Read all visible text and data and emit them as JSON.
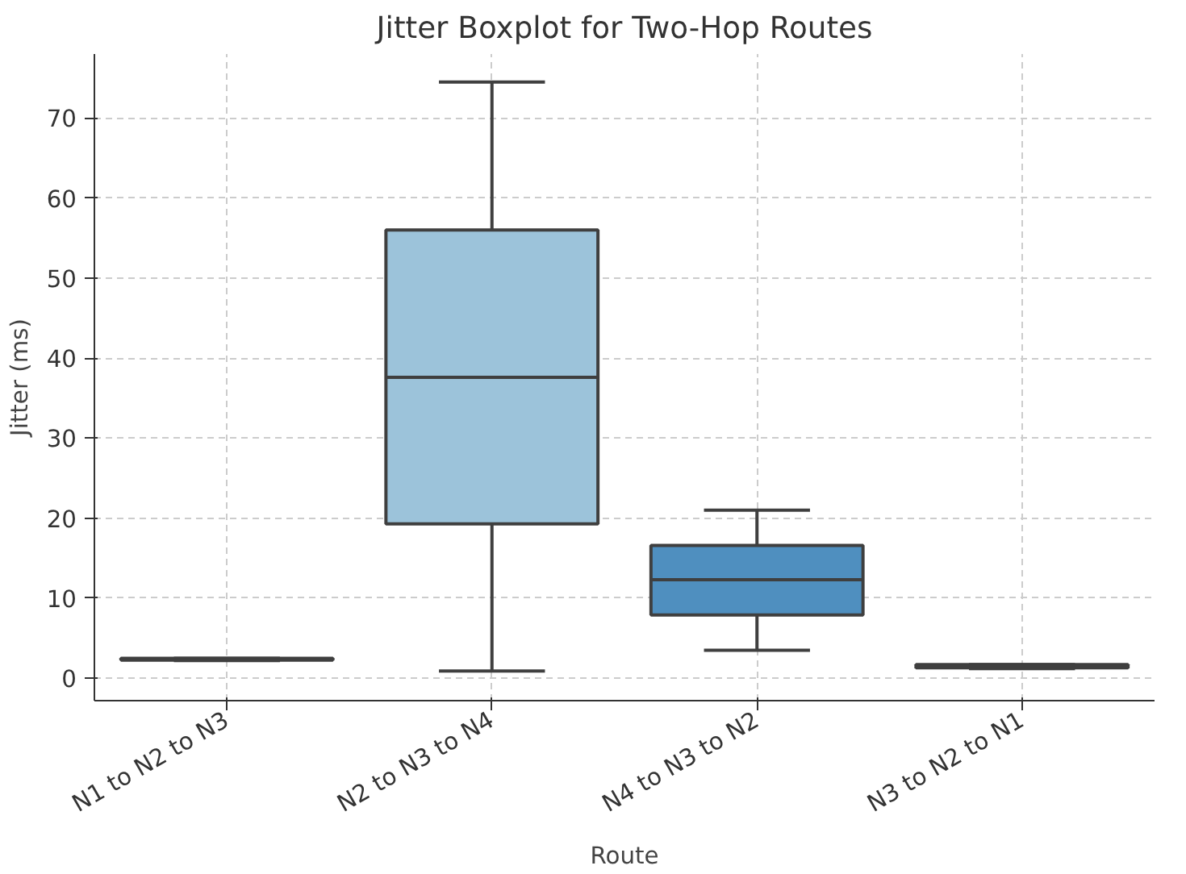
{
  "chart_data": {
    "type": "box",
    "title": "Jitter Boxplot for Two-Hop Routes",
    "xlabel": "Route",
    "ylabel": "Jitter (ms)",
    "categories": [
      "N1 to N2 to N3",
      "N2 to N3 to N4",
      "N4 to N3 to N2",
      "N3 to N2 to N1"
    ],
    "colors": [
      "#d6e6f4",
      "#9cc3da",
      "#4f8fbf",
      "#2a6ea8"
    ],
    "boxes": [
      {
        "low": 2.2,
        "q1": 2.3,
        "median": 2.3,
        "q3": 2.5,
        "high": 2.5
      },
      {
        "low": 0.9,
        "q1": 19.3,
        "median": 37.6,
        "q3": 56.0,
        "high": 74.5
      },
      {
        "low": 3.5,
        "q1": 7.9,
        "median": 12.3,
        "q3": 16.6,
        "high": 21.0
      },
      {
        "low": 1.2,
        "q1": 1.3,
        "median": 1.5,
        "q3": 1.7,
        "high": 1.7
      }
    ],
    "ylim": [
      -2.8,
      78
    ],
    "yticks": [
      0,
      10,
      20,
      30,
      40,
      50,
      60,
      70
    ],
    "grid": true
  }
}
